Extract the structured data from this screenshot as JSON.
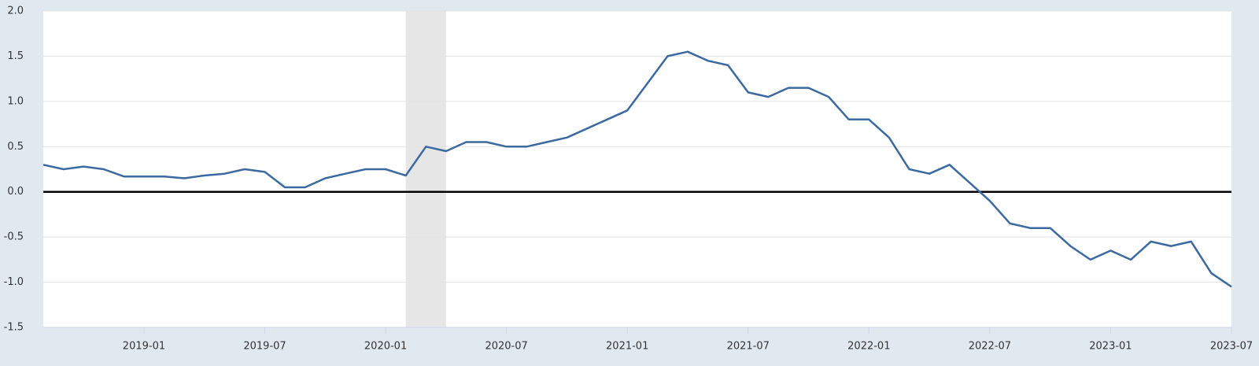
{
  "chart_data": {
    "type": "line",
    "x": [
      "2018-08",
      "2018-09",
      "2018-10",
      "2018-11",
      "2018-12",
      "2019-01",
      "2019-02",
      "2019-03",
      "2019-04",
      "2019-05",
      "2019-06",
      "2019-07",
      "2019-08",
      "2019-09",
      "2019-10",
      "2019-11",
      "2019-12",
      "2020-01",
      "2020-02",
      "2020-03",
      "2020-04",
      "2020-05",
      "2020-06",
      "2020-07",
      "2020-08",
      "2020-09",
      "2020-10",
      "2020-11",
      "2020-12",
      "2021-01",
      "2021-02",
      "2021-03",
      "2021-04",
      "2021-05",
      "2021-06",
      "2021-07",
      "2021-08",
      "2021-09",
      "2021-10",
      "2021-11",
      "2021-12",
      "2022-01",
      "2022-02",
      "2022-03",
      "2022-04",
      "2022-05",
      "2022-06",
      "2022-07",
      "2022-08",
      "2022-09",
      "2022-10",
      "2022-11",
      "2022-12",
      "2023-01",
      "2023-02",
      "2023-03",
      "2023-04",
      "2023-05",
      "2023-06",
      "2023-07"
    ],
    "series": [
      {
        "color": "#3b6aa0",
        "values": [
          0.3,
          0.25,
          0.28,
          0.25,
          0.17,
          0.17,
          0.17,
          0.15,
          0.18,
          0.2,
          0.25,
          0.22,
          0.05,
          0.05,
          0.15,
          0.2,
          0.25,
          0.25,
          0.18,
          0.5,
          0.45,
          0.55,
          0.55,
          0.5,
          0.5,
          0.55,
          0.6,
          0.7,
          0.8,
          0.9,
          1.2,
          1.5,
          1.55,
          1.45,
          1.4,
          1.1,
          1.05,
          1.15,
          1.15,
          1.05,
          0.8,
          0.8,
          0.6,
          0.25,
          0.2,
          0.3,
          0.1,
          -0.1,
          -0.35,
          -0.4,
          -0.4,
          -0.6,
          -0.75,
          -0.65,
          -0.75,
          -0.55,
          -0.6,
          -0.55,
          -0.9,
          -1.05
        ]
      }
    ],
    "shaded": {
      "start": "2020-02",
      "end": "2020-04",
      "color": "#e6e6e6"
    },
    "xlim": [
      "2018-08",
      "2023-07"
    ],
    "xticks": [
      "2019-01",
      "2019-07",
      "2020-01",
      "2020-07",
      "2021-01",
      "2021-07",
      "2022-01",
      "2022-07",
      "2023-01",
      "2023-07"
    ],
    "ylim": [
      -1.5,
      2.0
    ],
    "yticks": [
      {
        "value": -1.5,
        "label": "-1.5"
      },
      {
        "value": -1.0,
        "label": "-1.0"
      },
      {
        "value": -0.5,
        "label": "-0.5"
      },
      {
        "value": 0,
        "label": "0.0"
      },
      {
        "value": 0.5,
        "label": "0.5"
      },
      {
        "value": 1.0,
        "label": "1.0"
      },
      {
        "value": 1.5,
        "label": "1.5"
      },
      {
        "value": 2.0,
        "label": "2.0"
      }
    ],
    "grid": true,
    "zero_line_color": "#000000"
  }
}
